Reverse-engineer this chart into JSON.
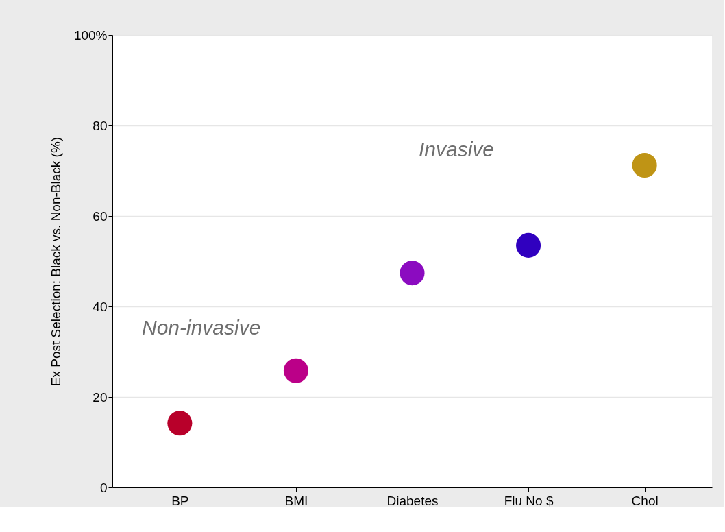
{
  "chart_data": {
    "type": "scatter",
    "ylabel": "Ex Post Selection: Black vs. Non-Black (%)",
    "categories": [
      "BP",
      "BMI",
      "Diabetes",
      "Flu No $",
      "Chol"
    ],
    "values": [
      14.2,
      25.8,
      47.4,
      53.5,
      71.2
    ],
    "colors": [
      "#b8002a",
      "#bb0088",
      "#8b0bc0",
      "#3000bf",
      "#bf9415"
    ],
    "ylim": [
      0,
      100
    ],
    "yticks": [
      0,
      20,
      40,
      60,
      80,
      {
        "value": 100,
        "label": "100%"
      }
    ],
    "grid": "y",
    "marker": "circle",
    "annotations": [
      "Non-invasive",
      "Invasive"
    ]
  }
}
